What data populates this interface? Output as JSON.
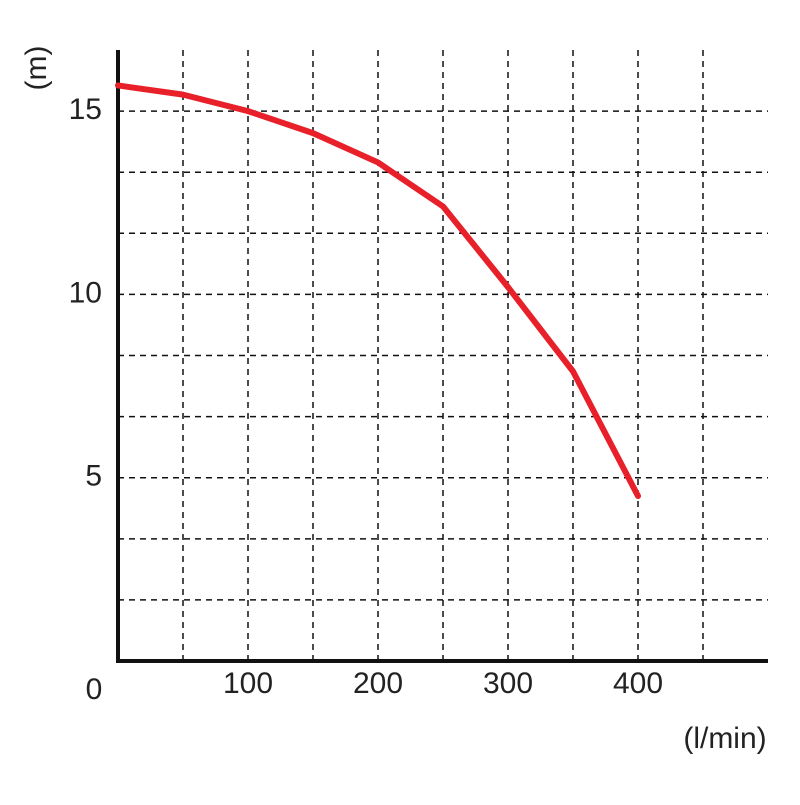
{
  "chart_data": {
    "type": "line",
    "y_label": "(m)",
    "x_label": "(l/min)",
    "x": [
      0,
      50,
      100,
      150,
      200,
      250,
      300,
      350,
      400
    ],
    "series": [
      {
        "color": "#e8202a",
        "values": [
          15.7,
          15.45,
          15.0,
          14.4,
          13.6,
          12.4,
          10.2,
          7.9,
          4.5
        ]
      }
    ],
    "xlim": [
      0,
      500
    ],
    "ylim": [
      0,
      16.667
    ],
    "xticks": [
      0,
      100,
      200,
      300,
      400
    ],
    "yticks": [
      5,
      10,
      15
    ],
    "xgrid": [
      50,
      100,
      150,
      200,
      250,
      300,
      350,
      400,
      450
    ],
    "ygrid": [
      1.667,
      3.333,
      5,
      6.667,
      8.333,
      10,
      11.667,
      13.333,
      15
    ],
    "grid": true
  }
}
